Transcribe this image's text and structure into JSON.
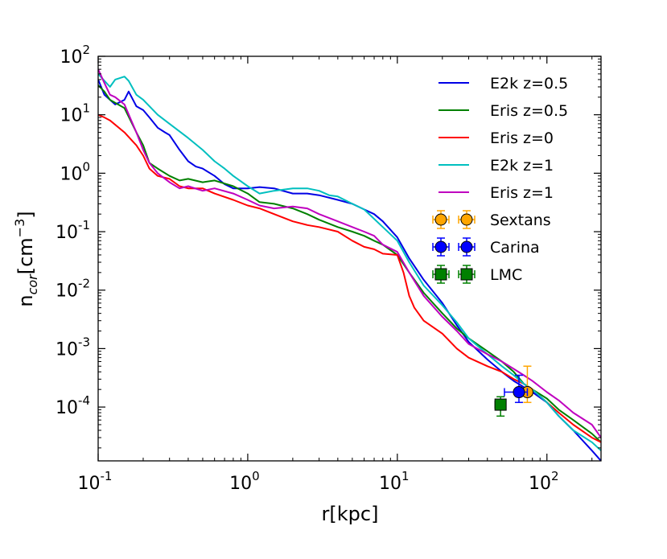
{
  "chart_data": {
    "type": "line",
    "xscale": "log",
    "yscale": "log",
    "xlabel": "r[kpc]",
    "ylabel": {
      "base": "n",
      "sub": "cor",
      "unit_open": "[cm",
      "unit_exp": "−3",
      "unit_close": "]"
    },
    "xlim": [
      0.1,
      230
    ],
    "ylim": [
      1.2e-05,
      100
    ],
    "x_ticks": [
      {
        "value": 0.1,
        "base": "10",
        "exp": "-1"
      },
      {
        "value": 1,
        "base": "10",
        "exp": "0"
      },
      {
        "value": 10,
        "base": "10",
        "exp": "1"
      },
      {
        "value": 100,
        "base": "10",
        "exp": "2"
      }
    ],
    "y_ticks": [
      {
        "value": 0.0001,
        "base": "10",
        "exp": "-4"
      },
      {
        "value": 0.001,
        "base": "10",
        "exp": "-3"
      },
      {
        "value": 0.01,
        "base": "10",
        "exp": "-2"
      },
      {
        "value": 0.1,
        "base": "10",
        "exp": "-1"
      },
      {
        "value": 1,
        "base": "10",
        "exp": "0"
      },
      {
        "value": 10,
        "base": "10",
        "exp": "1"
      },
      {
        "value": 100,
        "base": "10",
        "exp": "2"
      }
    ],
    "legend_position": "top-right",
    "series": [
      {
        "name": "E2k z=0.5",
        "color": "#0000e6",
        "x": [
          0.1,
          0.11,
          0.13,
          0.15,
          0.16,
          0.18,
          0.2,
          0.22,
          0.25,
          0.28,
          0.3,
          0.35,
          0.4,
          0.45,
          0.5,
          0.6,
          0.7,
          0.8,
          1.0,
          1.2,
          1.5,
          2.0,
          2.5,
          3.0,
          4.0,
          5.0,
          6.0,
          7.0,
          8.0,
          10,
          12,
          15,
          20,
          25,
          30,
          40,
          50,
          60,
          70,
          80,
          100,
          120,
          150,
          200,
          230
        ],
        "y": [
          40,
          22,
          15,
          18,
          25,
          14,
          12,
          9,
          6,
          5,
          4.5,
          2.5,
          1.6,
          1.3,
          1.2,
          0.9,
          0.65,
          0.55,
          0.55,
          0.58,
          0.55,
          0.45,
          0.45,
          0.42,
          0.35,
          0.3,
          0.24,
          0.2,
          0.15,
          0.08,
          0.035,
          0.015,
          0.006,
          0.0025,
          0.0013,
          0.00065,
          0.0004,
          0.00028,
          0.00022,
          0.00018,
          0.00012,
          7e-05,
          4e-05,
          1.8e-05,
          1.2e-05
        ]
      },
      {
        "name": "Eris z=0.5",
        "color": "#008000",
        "x": [
          0.1,
          0.11,
          0.12,
          0.15,
          0.18,
          0.2,
          0.22,
          0.25,
          0.3,
          0.35,
          0.4,
          0.5,
          0.6,
          0.8,
          1.0,
          1.2,
          1.5,
          2.0,
          2.5,
          3.0,
          4.0,
          5.0,
          6.0,
          7.0,
          8.0,
          10,
          12,
          15,
          20,
          25,
          30,
          40,
          50,
          60,
          70,
          80,
          100,
          120,
          150,
          200,
          230
        ],
        "y": [
          32,
          25,
          18,
          13,
          5,
          3,
          1.5,
          1.2,
          0.9,
          0.75,
          0.8,
          0.7,
          0.75,
          0.6,
          0.45,
          0.32,
          0.3,
          0.25,
          0.2,
          0.16,
          0.12,
          0.1,
          0.085,
          0.07,
          0.06,
          0.04,
          0.02,
          0.009,
          0.004,
          0.0022,
          0.0015,
          0.0009,
          0.0006,
          0.0004,
          0.00025,
          0.0002,
          0.00014,
          9e-05,
          6e-05,
          3.5e-05,
          2.5e-05
        ]
      },
      {
        "name": "Eris z=0",
        "color": "#ff0000",
        "x": [
          0.1,
          0.11,
          0.12,
          0.15,
          0.18,
          0.2,
          0.22,
          0.25,
          0.3,
          0.35,
          0.4,
          0.5,
          0.6,
          0.8,
          1.0,
          1.2,
          1.5,
          2.0,
          2.5,
          3.0,
          4.0,
          5.0,
          6.0,
          7.0,
          8.0,
          10,
          11,
          12,
          13,
          15,
          20,
          25,
          30,
          40,
          50,
          60,
          70,
          80,
          100,
          120,
          150,
          200,
          230
        ],
        "y": [
          10,
          9,
          8,
          5,
          3,
          2,
          1.2,
          0.9,
          0.8,
          0.6,
          0.55,
          0.55,
          0.45,
          0.35,
          0.28,
          0.25,
          0.2,
          0.15,
          0.13,
          0.12,
          0.1,
          0.07,
          0.055,
          0.05,
          0.042,
          0.04,
          0.02,
          0.008,
          0.005,
          0.003,
          0.0018,
          0.001,
          0.0007,
          0.0005,
          0.0004,
          0.0003,
          0.00025,
          0.0002,
          0.00012,
          8e-05,
          5e-05,
          3e-05,
          2.5e-05
        ]
      },
      {
        "name": "E2k z=1",
        "color": "#00bfbf",
        "x": [
          0.1,
          0.12,
          0.13,
          0.15,
          0.16,
          0.18,
          0.2,
          0.25,
          0.3,
          0.4,
          0.5,
          0.6,
          0.7,
          0.8,
          1.0,
          1.2,
          1.5,
          2.0,
          2.5,
          3.0,
          3.5,
          4.0,
          5.0,
          6.0,
          8.0,
          10,
          12,
          15,
          20,
          25,
          30,
          40,
          50,
          60,
          70,
          80,
          100,
          120,
          150,
          200,
          230
        ],
        "y": [
          50,
          30,
          40,
          45,
          38,
          22,
          18,
          10,
          7,
          4,
          2.5,
          1.6,
          1.2,
          0.9,
          0.6,
          0.45,
          0.5,
          0.55,
          0.55,
          0.5,
          0.42,
          0.4,
          0.3,
          0.24,
          0.12,
          0.07,
          0.03,
          0.012,
          0.0055,
          0.0028,
          0.0015,
          0.0008,
          0.0005,
          0.00035,
          0.00025,
          0.0002,
          0.00012,
          7e-05,
          4e-05,
          2.5e-05,
          1.8e-05
        ]
      },
      {
        "name": "Eris z=1",
        "color": "#bf00bf",
        "x": [
          0.1,
          0.11,
          0.12,
          0.13,
          0.15,
          0.18,
          0.2,
          0.22,
          0.25,
          0.3,
          0.35,
          0.4,
          0.5,
          0.6,
          0.8,
          1.0,
          1.2,
          1.5,
          2.0,
          2.5,
          3.0,
          4.0,
          5.0,
          6.0,
          7.0,
          8.0,
          10,
          12,
          15,
          20,
          25,
          30,
          40,
          50,
          60,
          70,
          80,
          100,
          120,
          150,
          200,
          230
        ],
        "y": [
          60,
          35,
          22,
          20,
          15,
          5,
          2.5,
          1.5,
          1.0,
          0.7,
          0.55,
          0.6,
          0.5,
          0.55,
          0.45,
          0.35,
          0.28,
          0.25,
          0.27,
          0.25,
          0.2,
          0.15,
          0.12,
          0.1,
          0.085,
          0.06,
          0.045,
          0.02,
          0.008,
          0.0035,
          0.002,
          0.0012,
          0.0008,
          0.0006,
          0.00045,
          0.00035,
          0.00028,
          0.00018,
          0.00013,
          8e-05,
          5e-05,
          3e-05
        ]
      }
    ],
    "points": [
      {
        "name": "Sextans",
        "marker": "circle",
        "color": "#ffa500",
        "x": 74,
        "y": 0.00018,
        "xerr": [
          68,
          80
        ],
        "yerr": [
          0.00012,
          0.0005
        ]
      },
      {
        "name": "Carina",
        "marker": "circle",
        "color": "#0000ff",
        "x": 65,
        "y": 0.00018,
        "xerr": [
          52,
          74
        ],
        "yerr": [
          0.00012,
          0.00035
        ]
      },
      {
        "name": "LMC",
        "marker": "square",
        "color": "#008000",
        "x": 49,
        "y": 0.00011,
        "xerr": [
          45,
          53
        ],
        "yerr": [
          7e-05,
          0.00015
        ]
      }
    ]
  }
}
